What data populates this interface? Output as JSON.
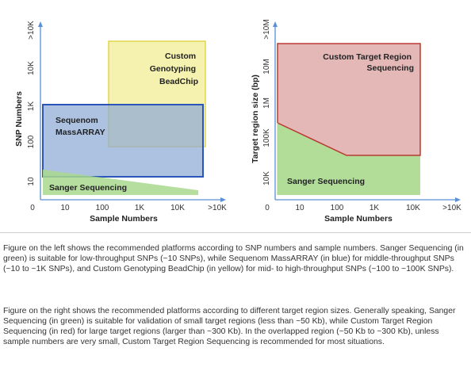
{
  "left_diagram": {
    "y_axis_label": "SNP Numbers",
    "x_axis_label": "Sample Numbers",
    "y_ticks": [
      "10",
      "100",
      "1K",
      "10K",
      ">10K"
    ],
    "x_ticks": [
      "0",
      "10",
      "100",
      "1K",
      "10K",
      ">10K"
    ],
    "regions": [
      {
        "label_lines": [
          "Custom",
          "Genotyping",
          "BeadChip"
        ],
        "color": "#f2ee9a"
      },
      {
        "label_lines": [
          "Sequenom",
          "MassARRAY"
        ],
        "color": "#9fb6d9"
      },
      {
        "label_lines": [
          "Sanger Sequencing"
        ],
        "color": "#bde3a6"
      }
    ]
  },
  "right_diagram": {
    "y_axis_label": "Target region size (bp)",
    "x_axis_label": "Sample Numbers",
    "y_ticks": [
      "10K",
      "100K",
      "1M",
      "10M",
      ">10M"
    ],
    "x_ticks": [
      "0",
      "10",
      "100",
      "1K",
      "10K",
      ">10K"
    ],
    "regions": [
      {
        "label_lines": [
          "Custom Target Region",
          "Sequencing"
        ],
        "color": "#e6b3b3"
      },
      {
        "label_lines": [
          "Sanger Sequencing"
        ],
        "color": "#bde3a6"
      }
    ]
  },
  "caption_left": "Figure on the left shows the recommended platforms according to SNP numbers and sample numbers. Sanger Sequencing (in green) is suitable for low-throughput SNPs (~10 SNPs), while Sequenom MassARRAY (in blue) for middle-throughput SNPs (~10 to ~1K SNPs), and Custom Genotyping BeadChip (in yellow) for mid- to high-throughput SNPs (~100 to ~100K SNPs).",
  "caption_right": "Figure on the right shows the recommended platforms according to different target region sizes. Generally speaking, Sanger Sequencing (in green) is suitable for validation of small target regions (less than ~50 Kb), while Custom Target Region Sequencing (in red) for large target regions (larger than ~300 Kb). In the overlapped region (~50 Kb to ~300 Kb), unless sample numbers are very small, Custom Target Region Sequencing is recommended for most situations."
}
